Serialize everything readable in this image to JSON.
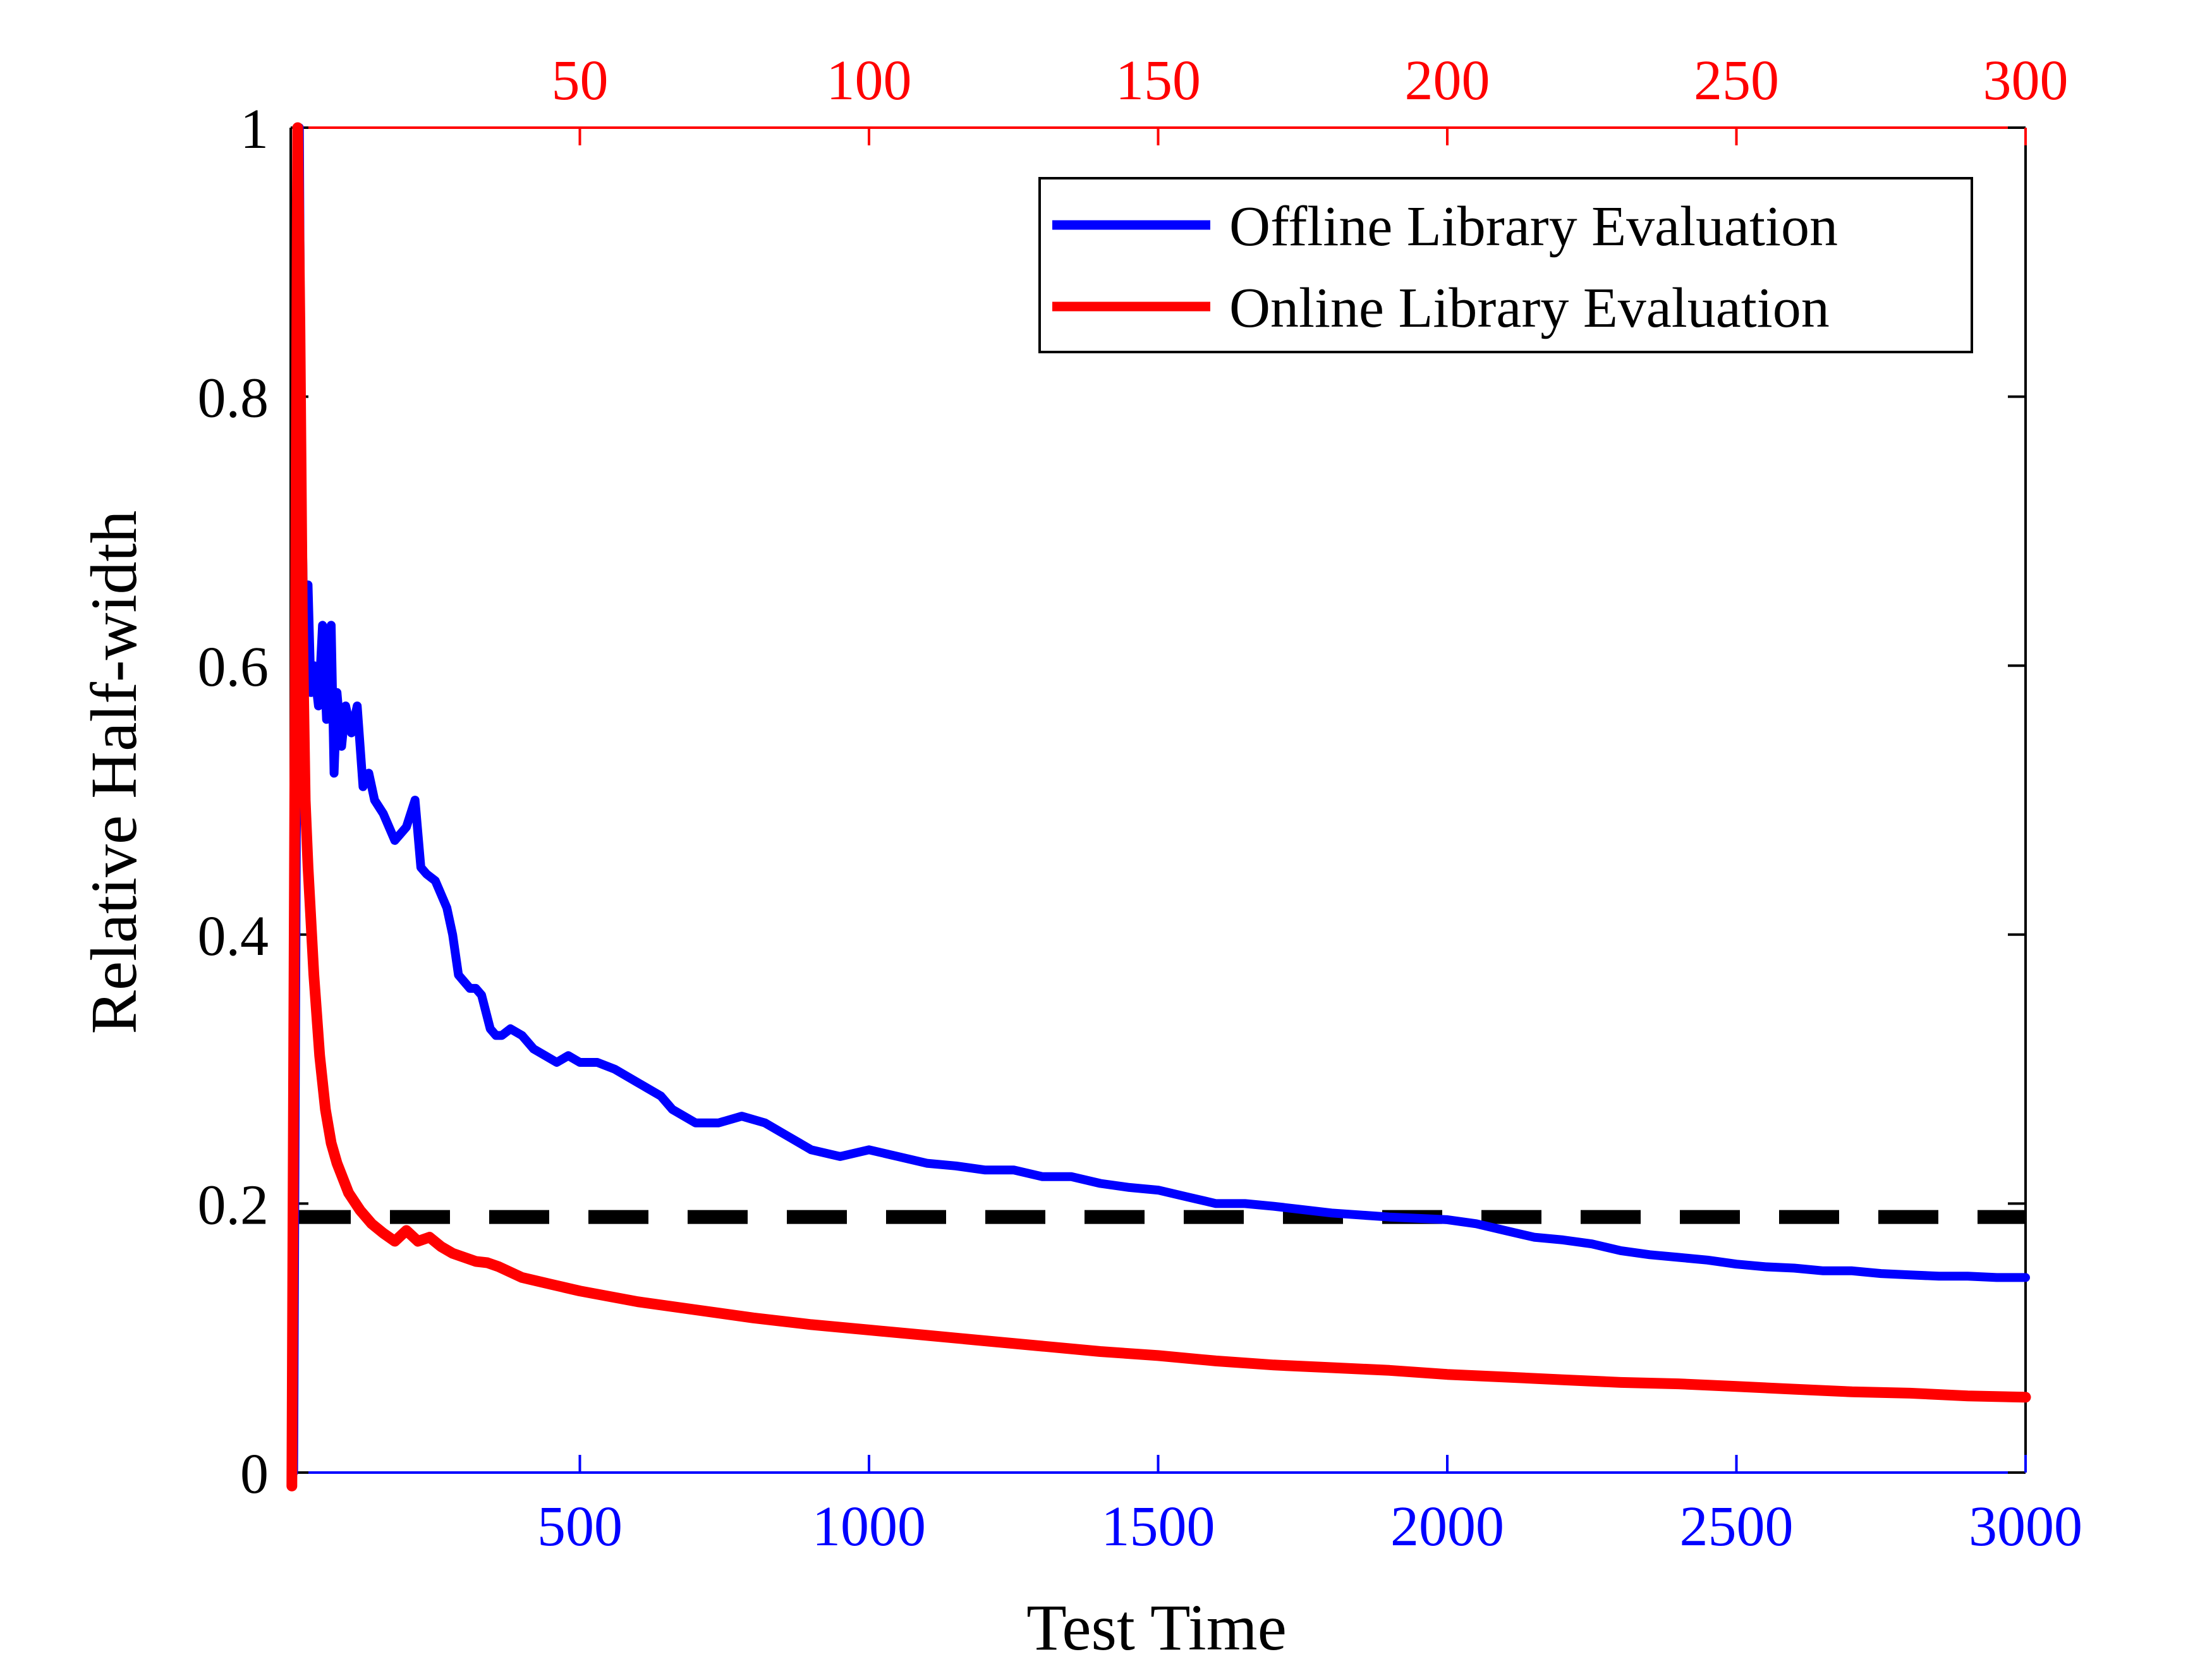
{
  "colors": {
    "offline": "#0000ff",
    "online": "#ff0000",
    "threshold": "#000000",
    "axes": "#000000"
  },
  "chart_data": {
    "type": "line",
    "xlabel": "Test Time",
    "ylabel": "Relative Half-width",
    "ylim": [
      0,
      1
    ],
    "y_ticks": [
      0,
      0.2,
      0.4,
      0.6,
      0.8,
      1
    ],
    "y_tick_labels": [
      "0",
      "0.2",
      "0.4",
      "0.6",
      "0.8",
      "1"
    ],
    "x_bottom": {
      "color": "blue",
      "lim": [
        0,
        3000
      ],
      "ticks": [
        500,
        1000,
        1500,
        2000,
        2500,
        3000
      ],
      "tick_labels": [
        "500",
        "1000",
        "1500",
        "2000",
        "2500",
        "3000"
      ]
    },
    "x_top": {
      "color": "red",
      "lim": [
        0,
        300
      ],
      "ticks": [
        50,
        100,
        150,
        200,
        250,
        300
      ],
      "tick_labels": [
        "50",
        "100",
        "150",
        "200",
        "250",
        "300"
      ]
    },
    "legend_position": "top-right",
    "grid": false,
    "threshold": {
      "y": 0.19,
      "style": "dashed"
    },
    "series": [
      {
        "name": "Offline Library Evaluation",
        "axis": "bottom",
        "color": "blue",
        "x": [
          5,
          15,
          18,
          22,
          26,
          30,
          35,
          40,
          48,
          55,
          62,
          70,
          75,
          80,
          88,
          95,
          105,
          115,
          125,
          135,
          145,
          160,
          180,
          200,
          215,
          225,
          235,
          250,
          270,
          280,
          290,
          300,
          310,
          320,
          330,
          345,
          355,
          365,
          380,
          400,
          420,
          440,
          460,
          480,
          500,
          530,
          560,
          600,
          640,
          660,
          680,
          700,
          740,
          780,
          820,
          860,
          900,
          950,
          1000,
          1050,
          1100,
          1150,
          1200,
          1250,
          1300,
          1350,
          1400,
          1450,
          1500,
          1550,
          1600,
          1650,
          1700,
          1800,
          1900,
          2000,
          2050,
          2100,
          2150,
          2200,
          2250,
          2300,
          2350,
          2400,
          2450,
          2500,
          2550,
          2600,
          2650,
          2700,
          2750,
          2800,
          2850,
          2900,
          2950,
          3000
        ],
        "values": [
          0.0,
          1.0,
          0.75,
          0.65,
          0.6,
          0.66,
          0.58,
          0.6,
          0.57,
          0.63,
          0.56,
          0.63,
          0.52,
          0.58,
          0.54,
          0.57,
          0.55,
          0.57,
          0.51,
          0.52,
          0.5,
          0.49,
          0.47,
          0.48,
          0.5,
          0.45,
          0.445,
          0.44,
          0.42,
          0.4,
          0.37,
          0.365,
          0.36,
          0.36,
          0.355,
          0.33,
          0.325,
          0.325,
          0.33,
          0.325,
          0.315,
          0.31,
          0.305,
          0.31,
          0.305,
          0.305,
          0.3,
          0.29,
          0.28,
          0.27,
          0.265,
          0.26,
          0.26,
          0.265,
          0.26,
          0.25,
          0.24,
          0.235,
          0.24,
          0.235,
          0.23,
          0.228,
          0.225,
          0.225,
          0.22,
          0.22,
          0.215,
          0.212,
          0.21,
          0.205,
          0.2,
          0.2,
          0.198,
          0.193,
          0.19,
          0.188,
          0.185,
          0.18,
          0.175,
          0.173,
          0.17,
          0.165,
          0.162,
          0.16,
          0.158,
          0.155,
          0.153,
          0.152,
          0.15,
          0.15,
          0.148,
          0.147,
          0.146,
          0.146,
          0.145,
          0.145
        ]
      },
      {
        "name": "Online Library Evaluation",
        "axis": "top",
        "color": "red",
        "x": [
          0.2,
          0.5,
          0.9,
          1.2,
          1.6,
          2.0,
          2.5,
          3,
          4,
          5,
          6,
          7,
          8,
          10,
          12,
          14,
          16,
          18,
          20,
          22,
          24,
          26,
          28,
          30,
          32,
          34,
          36,
          38,
          40,
          45,
          50,
          60,
          70,
          80,
          90,
          100,
          110,
          120,
          130,
          140,
          150,
          160,
          170,
          180,
          190,
          200,
          210,
          220,
          230,
          240,
          250,
          260,
          270,
          280,
          290,
          300
        ],
        "values": [
          -0.01,
          0.3,
          0.7,
          1.0,
          0.85,
          0.64,
          0.5,
          0.45,
          0.37,
          0.31,
          0.27,
          0.245,
          0.23,
          0.208,
          0.195,
          0.185,
          0.178,
          0.172,
          0.18,
          0.172,
          0.175,
          0.168,
          0.163,
          0.16,
          0.157,
          0.156,
          0.153,
          0.149,
          0.145,
          0.14,
          0.135,
          0.127,
          0.121,
          0.115,
          0.11,
          0.106,
          0.102,
          0.098,
          0.094,
          0.09,
          0.087,
          0.083,
          0.08,
          0.078,
          0.076,
          0.073,
          0.071,
          0.069,
          0.067,
          0.066,
          0.064,
          0.062,
          0.06,
          0.059,
          0.057,
          0.056
        ]
      }
    ]
  }
}
